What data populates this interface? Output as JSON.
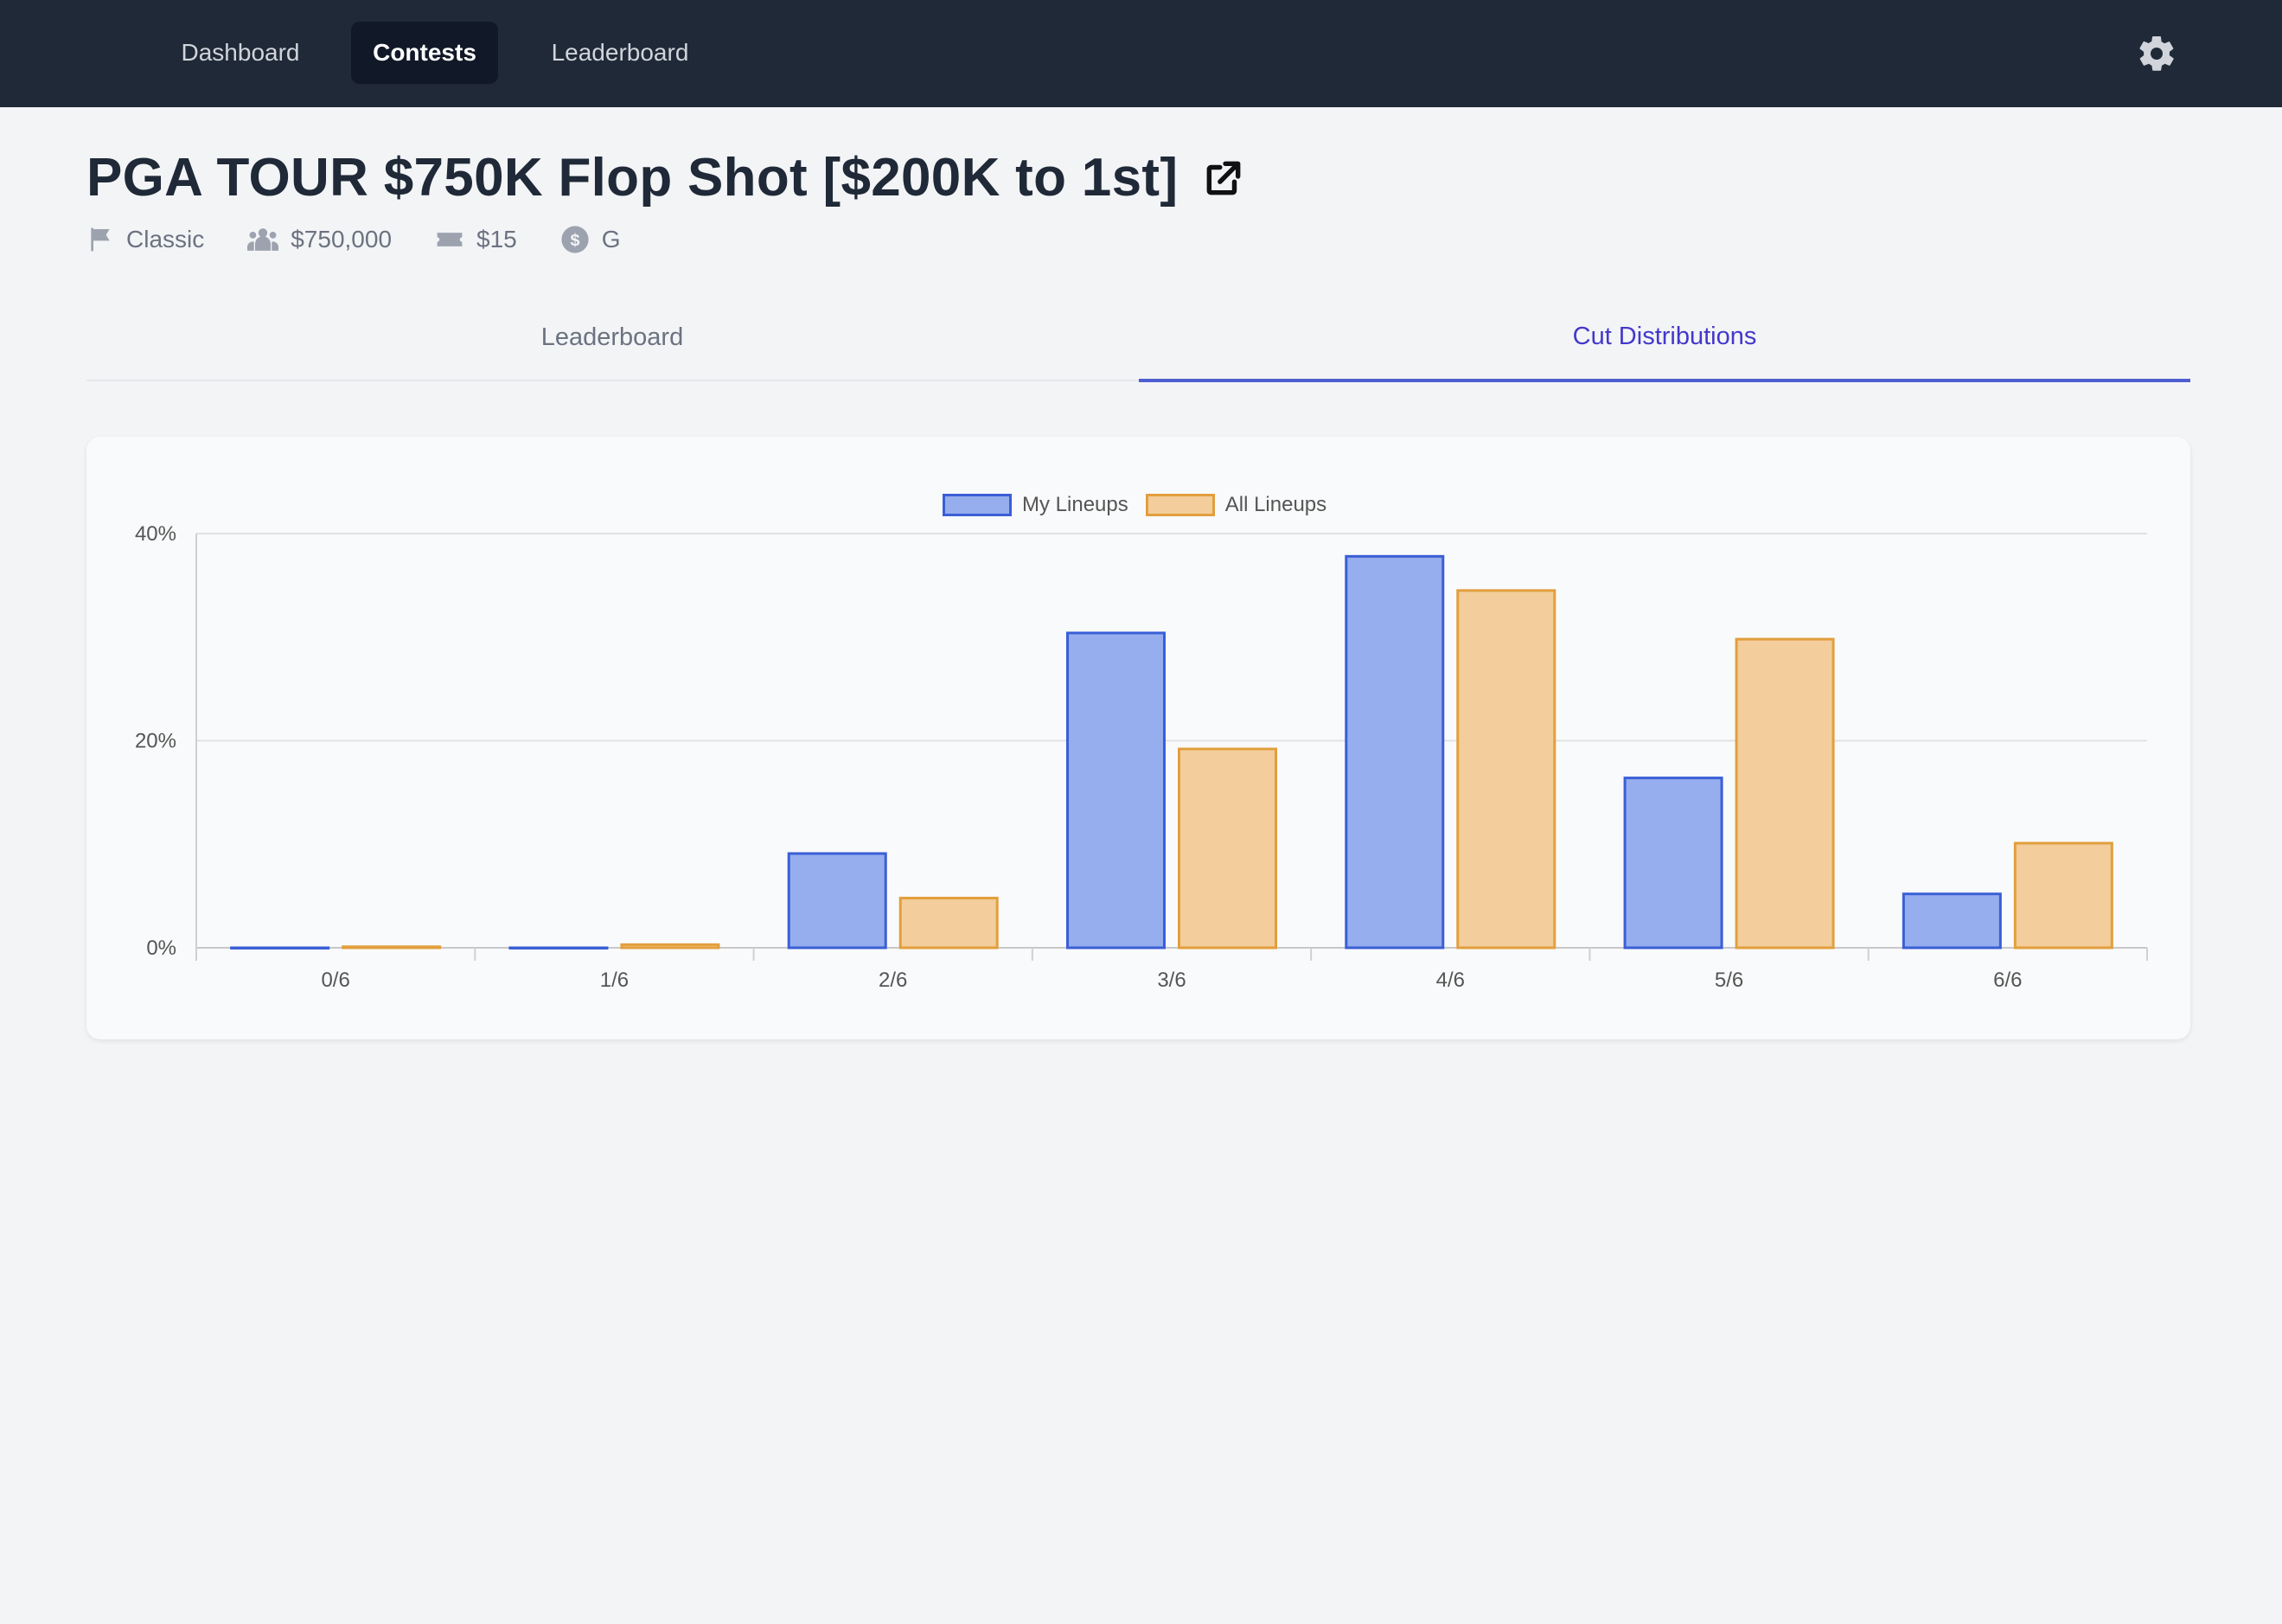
{
  "nav": {
    "items": [
      {
        "label": "Dashboard",
        "active": false
      },
      {
        "label": "Contests",
        "active": true
      },
      {
        "label": "Leaderboard",
        "active": false
      }
    ],
    "settings_icon": "gear-icon"
  },
  "contest": {
    "title": "PGA TOUR $750K Flop Shot [$200K to 1st]",
    "external_link_icon": "external-link-icon",
    "meta": {
      "type": "Classic",
      "prize_pool": "$750,000",
      "entry_fee": "$15",
      "currency_label": "G"
    }
  },
  "tabs": [
    {
      "label": "Leaderboard",
      "active": false
    },
    {
      "label": "Cut Distributions",
      "active": true
    }
  ],
  "colors": {
    "my_fill": "#97aeee",
    "my_stroke": "#3a5fd6",
    "all_fill": "#f3cd9b",
    "all_stroke": "#e29f3d",
    "active_tab": "#4338ca"
  },
  "chart_data": {
    "type": "bar",
    "categories": [
      "0/6",
      "1/6",
      "2/6",
      "3/6",
      "4/6",
      "5/6",
      "6/6"
    ],
    "series": [
      {
        "name": "My Lineups",
        "values": [
          0,
          0,
          9.1,
          30.4,
          37.8,
          16.4,
          5.2
        ]
      },
      {
        "name": "All Lineups",
        "values": [
          0.1,
          0.3,
          4.8,
          19.2,
          34.5,
          29.8,
          10.1
        ]
      }
    ],
    "ylim": [
      0,
      40
    ],
    "yticks": [
      "0%",
      "20%",
      "40%"
    ],
    "grid": true,
    "legend": "top-center"
  }
}
